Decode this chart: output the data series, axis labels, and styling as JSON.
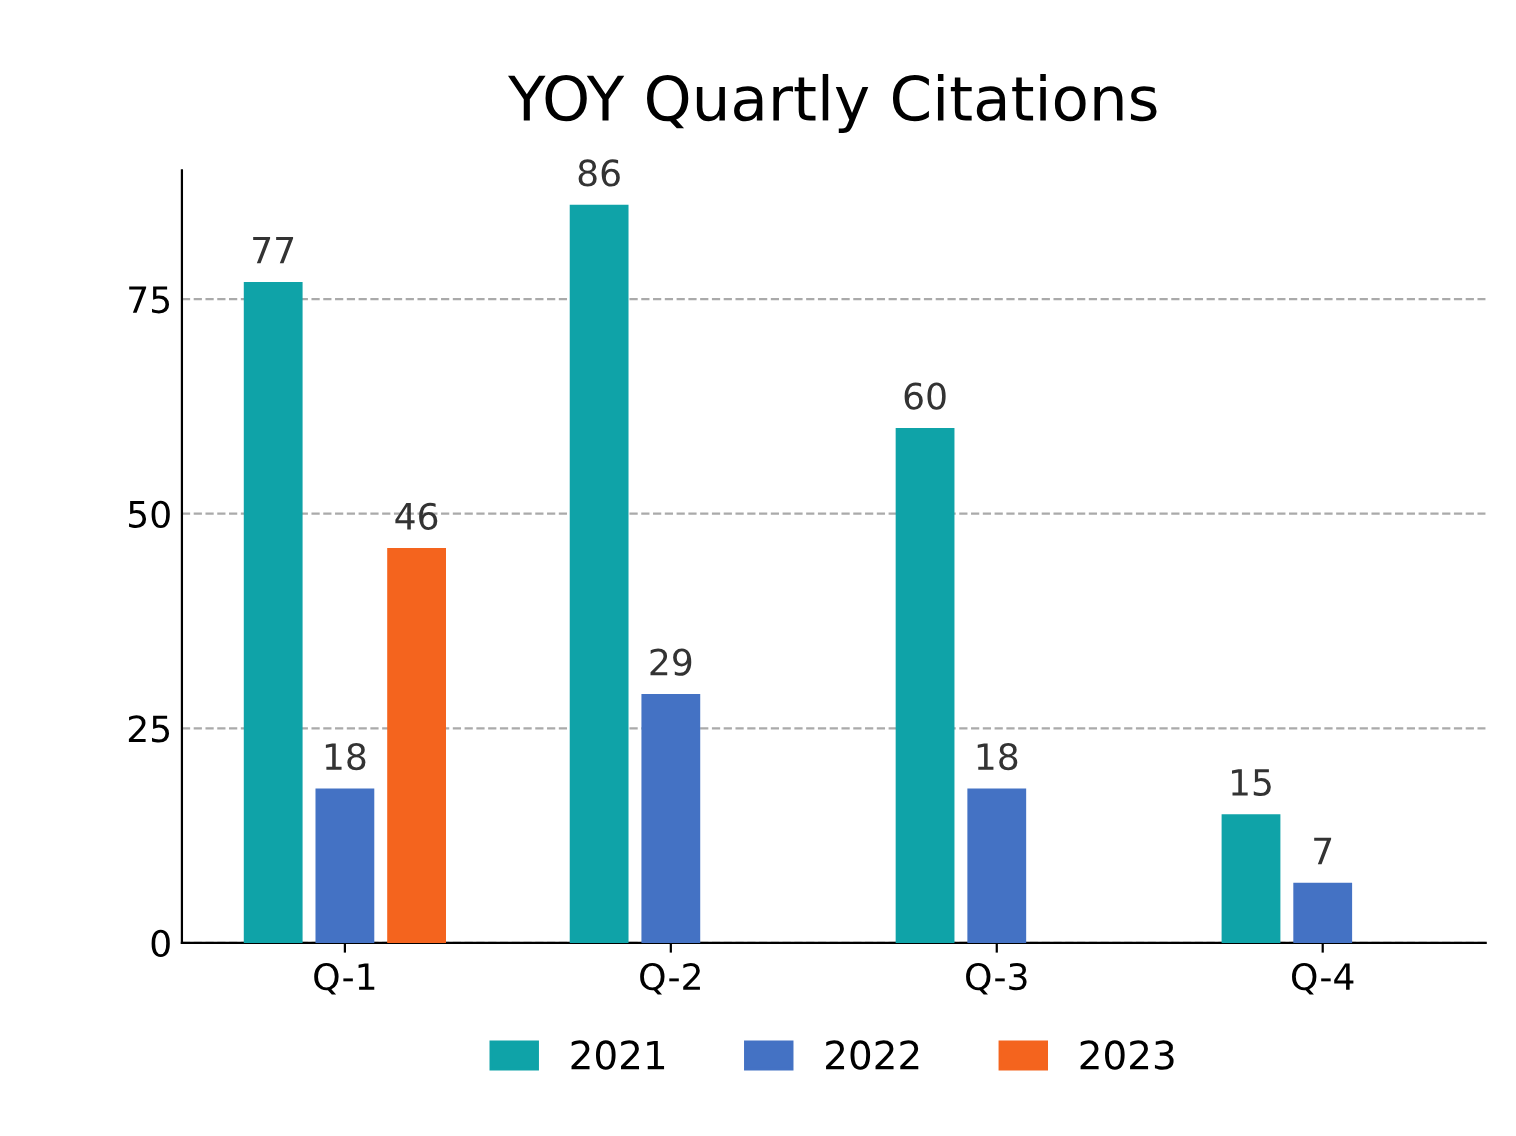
{
  "chart_data": {
    "type": "bar",
    "title": "YOY Quartly Citations",
    "categories": [
      "Q-1",
      "Q-2",
      "Q-3",
      "Q-4"
    ],
    "series": [
      {
        "name": "2021",
        "color": "#0fa3a8",
        "values": [
          77,
          86,
          60,
          15
        ]
      },
      {
        "name": "2022",
        "color": "#4472c4",
        "values": [
          18,
          29,
          18,
          7
        ]
      },
      {
        "name": "2023",
        "color": "#f4641e",
        "values": [
          46,
          null,
          null,
          null
        ]
      }
    ],
    "ylim": [
      0,
      90
    ],
    "yticks": [
      0,
      25,
      50,
      75
    ],
    "grid": "y",
    "legend": "bottom",
    "data_labels": true
  }
}
